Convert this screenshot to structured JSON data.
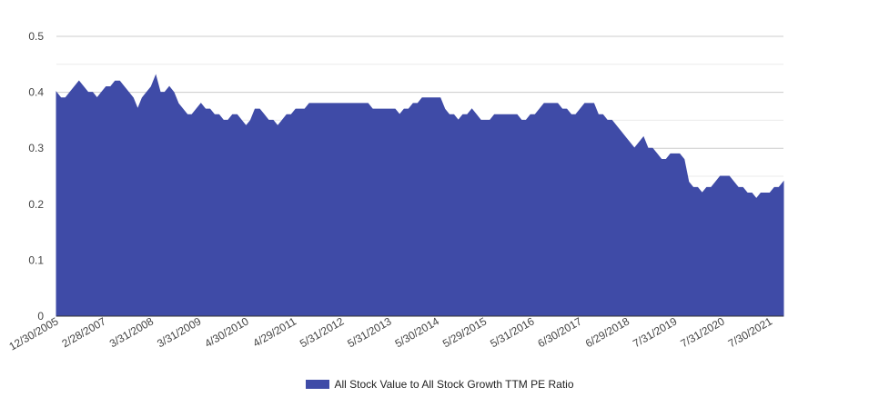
{
  "chart_data": {
    "type": "area",
    "title": "",
    "xlabel": "",
    "ylabel": "",
    "ylim": [
      0,
      0.5
    ],
    "yticks": [
      "0",
      "0.1",
      "0.2",
      "0.3",
      "0.4",
      "0.5"
    ],
    "xtick_labels": [
      "12/30/2005",
      "2/28/2007",
      "3/31/2008",
      "3/31/2009",
      "4/30/2010",
      "4/29/2011",
      "5/31/2012",
      "5/31/2013",
      "5/30/2014",
      "5/29/2015",
      "5/31/2016",
      "6/30/2017",
      "6/29/2018",
      "7/31/2019",
      "7/31/2020",
      "7/30/2021"
    ],
    "grid": "horizontal",
    "legend_position": "bottom",
    "series": [
      {
        "name": "All Stock Value to All Stock Growth TTM PE Ratio",
        "color": "#3f4ba7",
        "values": [
          0.4,
          0.39,
          0.39,
          0.4,
          0.41,
          0.42,
          0.41,
          0.4,
          0.4,
          0.39,
          0.4,
          0.41,
          0.41,
          0.42,
          0.42,
          0.41,
          0.4,
          0.39,
          0.37,
          0.39,
          0.4,
          0.41,
          0.43,
          0.4,
          0.4,
          0.41,
          0.4,
          0.38,
          0.37,
          0.36,
          0.36,
          0.37,
          0.38,
          0.37,
          0.37,
          0.36,
          0.36,
          0.35,
          0.35,
          0.36,
          0.36,
          0.35,
          0.34,
          0.35,
          0.37,
          0.37,
          0.36,
          0.35,
          0.35,
          0.34,
          0.35,
          0.36,
          0.36,
          0.37,
          0.37,
          0.37,
          0.38,
          0.38,
          0.38,
          0.38,
          0.38,
          0.38,
          0.38,
          0.38,
          0.38,
          0.38,
          0.38,
          0.38,
          0.38,
          0.38,
          0.37,
          0.37,
          0.37,
          0.37,
          0.37,
          0.37,
          0.36,
          0.37,
          0.37,
          0.38,
          0.38,
          0.39,
          0.39,
          0.39,
          0.39,
          0.39,
          0.37,
          0.36,
          0.36,
          0.35,
          0.36,
          0.36,
          0.37,
          0.36,
          0.35,
          0.35,
          0.35,
          0.36,
          0.36,
          0.36,
          0.36,
          0.36,
          0.36,
          0.35,
          0.35,
          0.36,
          0.36,
          0.37,
          0.38,
          0.38,
          0.38,
          0.38,
          0.37,
          0.37,
          0.36,
          0.36,
          0.37,
          0.38,
          0.38,
          0.38,
          0.36,
          0.36,
          0.35,
          0.35,
          0.34,
          0.33,
          0.32,
          0.31,
          0.3,
          0.31,
          0.32,
          0.3,
          0.3,
          0.29,
          0.28,
          0.28,
          0.29,
          0.29,
          0.29,
          0.28,
          0.24,
          0.23,
          0.23,
          0.22,
          0.23,
          0.23,
          0.24,
          0.25,
          0.25,
          0.25,
          0.24,
          0.23,
          0.23,
          0.22,
          0.22,
          0.21,
          0.22,
          0.22,
          0.22,
          0.23,
          0.23,
          0.24
        ]
      }
    ]
  }
}
